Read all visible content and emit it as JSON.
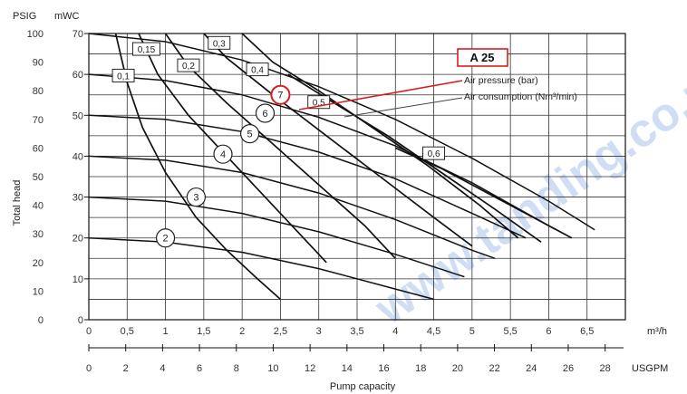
{
  "colors": {
    "accent": "#d42020",
    "watermark": "#2f6fd6"
  },
  "watermark_text": "www.tanding.co.uk",
  "chart_data": {
    "type": "line",
    "title": "",
    "xlabel": "Pump capacity",
    "ylabel": "Total head",
    "left_units": {
      "psig": "PSIG",
      "mwc": "mWC"
    },
    "x_unit_top": "m³/h",
    "x_unit_bottom": "USGPM",
    "x_range_m3h": [
      0,
      7
    ],
    "y_range_mwc": [
      0,
      70
    ],
    "psig_ticks": [
      "0",
      "10",
      "20",
      "30",
      "40",
      "50",
      "60",
      "70",
      "80",
      "90",
      "100"
    ],
    "mwc_ticks": [
      "0",
      "10",
      "20",
      "30",
      "40",
      "50",
      "60",
      "70"
    ],
    "x_ticks_m3h": [
      "0",
      "0,5",
      "1",
      "1,5",
      "2",
      "2,5",
      "3",
      "3,5",
      "4",
      "4,5",
      "5",
      "5,5",
      "6",
      "6,5"
    ],
    "x_ticks_usgpm": [
      "0",
      "2",
      "4",
      "6",
      "8",
      "10",
      "12",
      "14",
      "16",
      "18",
      "20",
      "22",
      "24",
      "26",
      "28"
    ],
    "grid": true,
    "legend": {
      "model": "A 25",
      "air_pressure": "Air pressure (bar)",
      "air_consumption": "Air consumption (Nm³/min)"
    },
    "pressure_curves": [
      {
        "label": "2",
        "points": [
          [
            0,
            20
          ],
          [
            1.0,
            19
          ],
          [
            2.0,
            16.5
          ],
          [
            3.0,
            12.5
          ],
          [
            4.0,
            7.5
          ],
          [
            4.5,
            5
          ]
        ],
        "marker": [
          1.0,
          20
        ]
      },
      {
        "label": "3",
        "points": [
          [
            0,
            30
          ],
          [
            1.0,
            29
          ],
          [
            2.0,
            26
          ],
          [
            3.0,
            21.5
          ],
          [
            4.0,
            16
          ],
          [
            4.9,
            10.5
          ]
        ],
        "marker": [
          1.4,
          30
        ]
      },
      {
        "label": "4",
        "points": [
          [
            0,
            40
          ],
          [
            1.0,
            39
          ],
          [
            2.0,
            36
          ],
          [
            3.0,
            31
          ],
          [
            4.0,
            24.5
          ],
          [
            5.0,
            17
          ],
          [
            5.3,
            15
          ]
        ],
        "marker": [
          1.75,
          40.5
        ]
      },
      {
        "label": "5",
        "points": [
          [
            0,
            50
          ],
          [
            1.0,
            49
          ],
          [
            2.0,
            46
          ],
          [
            3.0,
            41
          ],
          [
            4.0,
            34.5
          ],
          [
            5.0,
            26
          ],
          [
            5.7,
            20
          ]
        ],
        "marker": [
          2.1,
          45.5
        ]
      },
      {
        "label": "6",
        "points": [
          [
            0,
            60
          ],
          [
            1.0,
            58.5
          ],
          [
            2.0,
            55
          ],
          [
            3.0,
            49.5
          ],
          [
            4.0,
            42.5
          ],
          [
            5.0,
            33.5
          ],
          [
            6.0,
            23
          ],
          [
            6.1,
            22
          ]
        ],
        "marker": [
          2.3,
          50.5
        ]
      },
      {
        "label": "7",
        "points": [
          [
            0,
            70
          ],
          [
            1.0,
            68
          ],
          [
            2.0,
            63.5
          ],
          [
            3.0,
            57
          ],
          [
            4.0,
            49
          ],
          [
            5.0,
            39.5
          ],
          [
            6.0,
            29
          ],
          [
            6.6,
            22
          ]
        ],
        "marker": [
          2.5,
          55
        ]
      }
    ],
    "air_curves": [
      {
        "label": "0,1",
        "points": [
          [
            0.35,
            70
          ],
          [
            0.5,
            58
          ],
          [
            0.7,
            47
          ],
          [
            1.0,
            36
          ],
          [
            1.4,
            25
          ],
          [
            1.8,
            17
          ],
          [
            2.2,
            10
          ],
          [
            2.5,
            5
          ]
        ],
        "label_at": [
          0.45,
          59.5
        ]
      },
      {
        "label": "0,15",
        "points": [
          [
            0.65,
            70
          ],
          [
            0.9,
            60
          ],
          [
            1.3,
            50
          ],
          [
            1.8,
            40
          ],
          [
            2.3,
            30
          ],
          [
            2.8,
            20
          ],
          [
            3.1,
            14
          ]
        ],
        "label_at": [
          0.75,
          66
        ]
      },
      {
        "label": "0,2",
        "points": [
          [
            1.0,
            70
          ],
          [
            1.3,
            62
          ],
          [
            1.8,
            53
          ],
          [
            2.4,
            43
          ],
          [
            3.0,
            33
          ],
          [
            3.6,
            23
          ],
          [
            4.0,
            15
          ]
        ],
        "label_at": [
          1.3,
          62
        ]
      },
      {
        "label": "0,3",
        "points": [
          [
            1.5,
            70
          ],
          [
            1.8,
            64
          ],
          [
            2.4,
            55
          ],
          [
            3.1,
            45
          ],
          [
            3.8,
            35
          ],
          [
            4.5,
            25
          ],
          [
            5.0,
            18
          ]
        ],
        "label_at": [
          1.7,
          67.5
        ]
      },
      {
        "label": "0,4",
        "points": [
          [
            2.0,
            70
          ],
          [
            2.4,
            63
          ],
          [
            3.0,
            56
          ],
          [
            3.7,
            47
          ],
          [
            4.4,
            38
          ],
          [
            5.1,
            28
          ],
          [
            5.6,
            20
          ]
        ],
        "label_at": [
          2.2,
          61
        ]
      },
      {
        "label": "0,5",
        "points": [
          [
            2.6,
            60
          ],
          [
            3.2,
            53
          ],
          [
            3.9,
            45
          ],
          [
            4.6,
            36
          ],
          [
            5.3,
            27
          ],
          [
            5.9,
            19
          ]
        ],
        "label_at": [
          3.0,
          53
        ]
      },
      {
        "label": "0,6",
        "points": [
          [
            4.0,
            42
          ],
          [
            4.6,
            37
          ],
          [
            5.2,
            31
          ],
          [
            5.8,
            25
          ],
          [
            6.3,
            20
          ]
        ],
        "label_at": [
          4.5,
          40.5
        ]
      }
    ]
  }
}
